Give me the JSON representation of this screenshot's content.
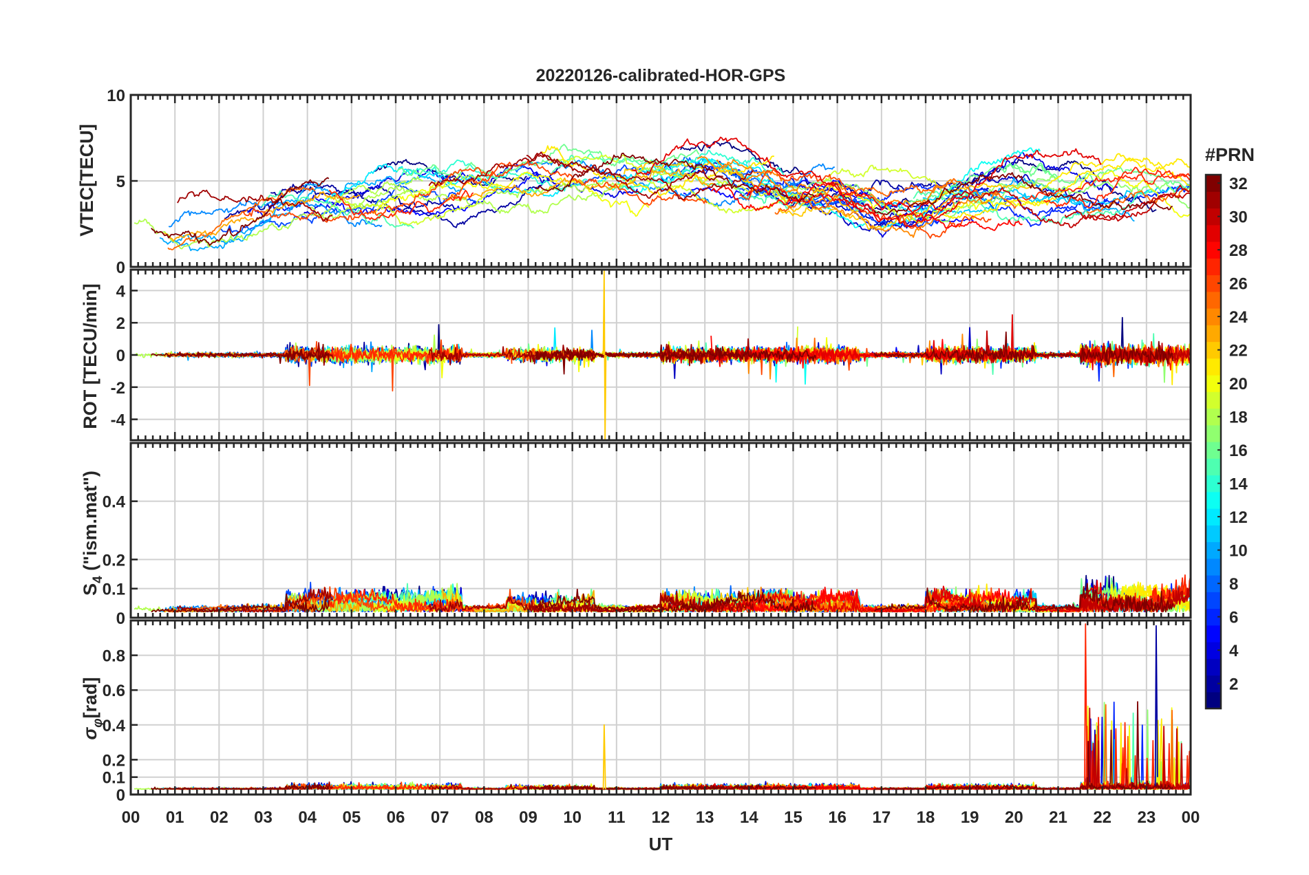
{
  "chart_data": {
    "type": "line",
    "title": "20220126-calibrated-HOR-GPS",
    "xlabel": "UT",
    "x_ticks": [
      "00",
      "01",
      "02",
      "03",
      "04",
      "05",
      "06",
      "07",
      "08",
      "09",
      "10",
      "11",
      "12",
      "13",
      "14",
      "15",
      "16",
      "17",
      "18",
      "19",
      "20",
      "21",
      "22",
      "23",
      "00"
    ],
    "xlim": [
      0,
      24
    ],
    "colorbar": {
      "label": "#PRN",
      "range": [
        1,
        32
      ],
      "ticks": [
        "2",
        "4",
        "6",
        "8",
        "10",
        "12",
        "14",
        "16",
        "18",
        "20",
        "22",
        "24",
        "26",
        "28",
        "30",
        "32"
      ]
    },
    "panels": [
      {
        "id": "vtec",
        "ylabel": "VTEC[TECU]",
        "ylim": [
          0,
          10
        ],
        "yticks": [
          "0",
          "5",
          "10"
        ],
        "ytick_values": [
          0,
          5,
          10
        ],
        "trend": {
          "hours": [
            0,
            2,
            4,
            6,
            8,
            9,
            10,
            11,
            12,
            13,
            14,
            15,
            16,
            17,
            18,
            19,
            20,
            21,
            22,
            23,
            24
          ],
          "values": [
            2.2,
            2.8,
            3.8,
            4.2,
            4.5,
            5.3,
            5.6,
            5.7,
            5.5,
            5.2,
            4.6,
            4.4,
            4.3,
            3.4,
            3.5,
            4.0,
            4.4,
            4.3,
            4.6,
            4.5,
            4.2
          ]
        }
      },
      {
        "id": "rot",
        "ylabel": "ROT [TECU/min]",
        "ylim": [
          -5.3,
          5.3
        ],
        "yticks": [
          "-4",
          "-2",
          "0",
          "2",
          "4"
        ],
        "ytick_values": [
          -4,
          -2,
          0,
          2,
          4
        ]
      },
      {
        "id": "s4",
        "ylabel_main": "S",
        "ylabel_sub": "4",
        "ylabel_rest": " (\"ism.mat\")",
        "ylim": [
          0,
          0.6
        ],
        "yticks": [
          "0",
          "0.1",
          "0.2",
          "0.4"
        ],
        "ytick_values": [
          0,
          0.1,
          0.2,
          0.4
        ]
      },
      {
        "id": "sigphi",
        "ylabel_main": "σ",
        "ylabel_sub": "φ",
        "ylabel_rest": "[rad]",
        "ylim": [
          0,
          1.0
        ],
        "yticks": [
          "0",
          "0.1",
          "0.2",
          "0.4",
          "0.6",
          "0.8"
        ],
        "ytick_values": [
          0,
          0.1,
          0.2,
          0.4,
          0.6,
          0.8
        ]
      }
    ]
  }
}
